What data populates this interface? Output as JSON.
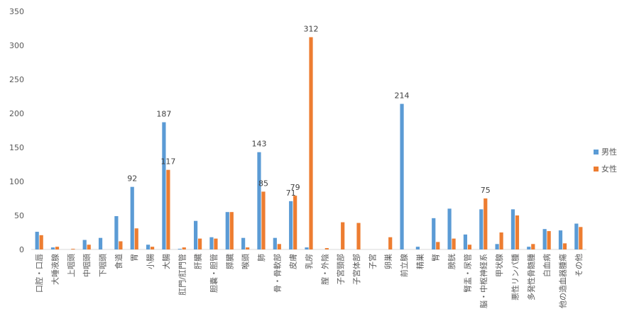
{
  "chart_data": {
    "type": "bar",
    "title": "",
    "xlabel": "",
    "ylabel": "",
    "ylim": [
      0,
      350
    ],
    "yticks": [
      0,
      50,
      100,
      150,
      200,
      250,
      300,
      350
    ],
    "grid": false,
    "legend_position": "right",
    "categories": [
      "口腔・口唇",
      "大唾液腺",
      "上咽頭",
      "中咽頭",
      "下咽頭",
      "食道",
      "胃",
      "小腸",
      "大腸",
      "肛門/肛門管",
      "肝臓",
      "胆嚢・胆管",
      "膵臓",
      "喉頭",
      "肺",
      "骨・骨軟部",
      "皮膚",
      "乳房",
      "膣・外陰",
      "子宮頸部",
      "子宮体部",
      "子宮",
      "卵巣",
      "前立腺",
      "精巣",
      "腎",
      "膀胱",
      "腎盂・尿管",
      "脳・中枢神経系",
      "甲状腺",
      "悪性リンパ腫",
      "多発性骨髄腫",
      "白血病",
      "他の造血器腫瘍",
      "その他"
    ],
    "series": [
      {
        "name": "男性",
        "color": "#5B9BD5",
        "values": [
          26,
          3,
          0,
          14,
          17,
          49,
          92,
          7,
          187,
          1,
          42,
          18,
          55,
          17,
          143,
          17,
          71,
          3,
          0,
          0,
          0,
          0,
          0,
          214,
          4,
          46,
          60,
          22,
          59,
          8,
          59,
          4,
          30,
          28,
          38
        ],
        "labels": [
          null,
          null,
          null,
          null,
          null,
          null,
          "92",
          null,
          "187",
          null,
          null,
          null,
          null,
          null,
          "143",
          null,
          "71",
          null,
          null,
          null,
          null,
          null,
          null,
          "214",
          null,
          null,
          null,
          null,
          null,
          null,
          null,
          null,
          null,
          null,
          null
        ]
      },
      {
        "name": "女性",
        "color": "#ED7D31",
        "values": [
          21,
          4,
          1,
          7,
          0,
          12,
          31,
          4,
          117,
          3,
          16,
          16,
          55,
          3,
          85,
          8,
          79,
          312,
          2,
          40,
          39,
          0,
          18,
          0,
          0,
          11,
          16,
          7,
          75,
          25,
          50,
          8,
          27,
          9,
          33
        ],
        "labels": [
          null,
          null,
          null,
          null,
          null,
          null,
          null,
          null,
          "117",
          null,
          null,
          null,
          null,
          null,
          "85",
          null,
          "79",
          "312",
          null,
          null,
          null,
          null,
          null,
          null,
          null,
          null,
          null,
          null,
          "75",
          null,
          null,
          null,
          null,
          null,
          null
        ]
      }
    ]
  }
}
